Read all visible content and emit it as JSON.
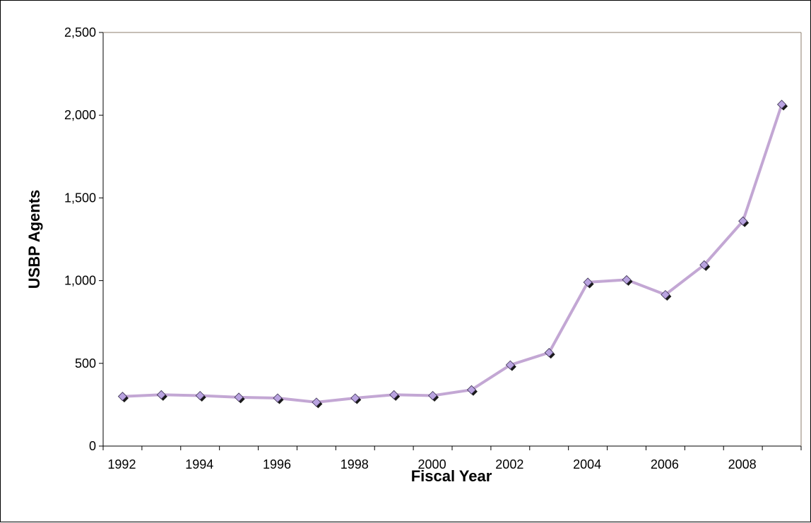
{
  "chart_data": {
    "type": "line",
    "title": "",
    "xlabel": "Fiscal Year",
    "ylabel": "USBP Agents",
    "x": [
      1992,
      1993,
      1994,
      1995,
      1996,
      1997,
      1998,
      1999,
      2000,
      2001,
      2002,
      2003,
      2004,
      2005,
      2006,
      2007,
      2008,
      2009
    ],
    "x_tick_labels": [
      "1992",
      "1994",
      "1996",
      "1998",
      "2000",
      "2002",
      "2004",
      "2006",
      "2008"
    ],
    "xlim": [
      1991.5,
      2009.5
    ],
    "ylim": [
      0,
      2500
    ],
    "y_ticks": [
      0,
      500,
      1000,
      1500,
      2000,
      2500
    ],
    "y_tick_labels": [
      "0",
      "500",
      "1,000",
      "1,500",
      "2,000",
      "2,500"
    ],
    "grid": false,
    "legend": "none",
    "series": [
      {
        "values": [
          300,
          310,
          305,
          295,
          290,
          265,
          290,
          310,
          305,
          340,
          490,
          565,
          990,
          1005,
          915,
          1095,
          1360,
          2065
        ],
        "line_color": "#c3a7d4",
        "marker_color": "#b9a3e0",
        "marker": "diamond"
      }
    ]
  }
}
